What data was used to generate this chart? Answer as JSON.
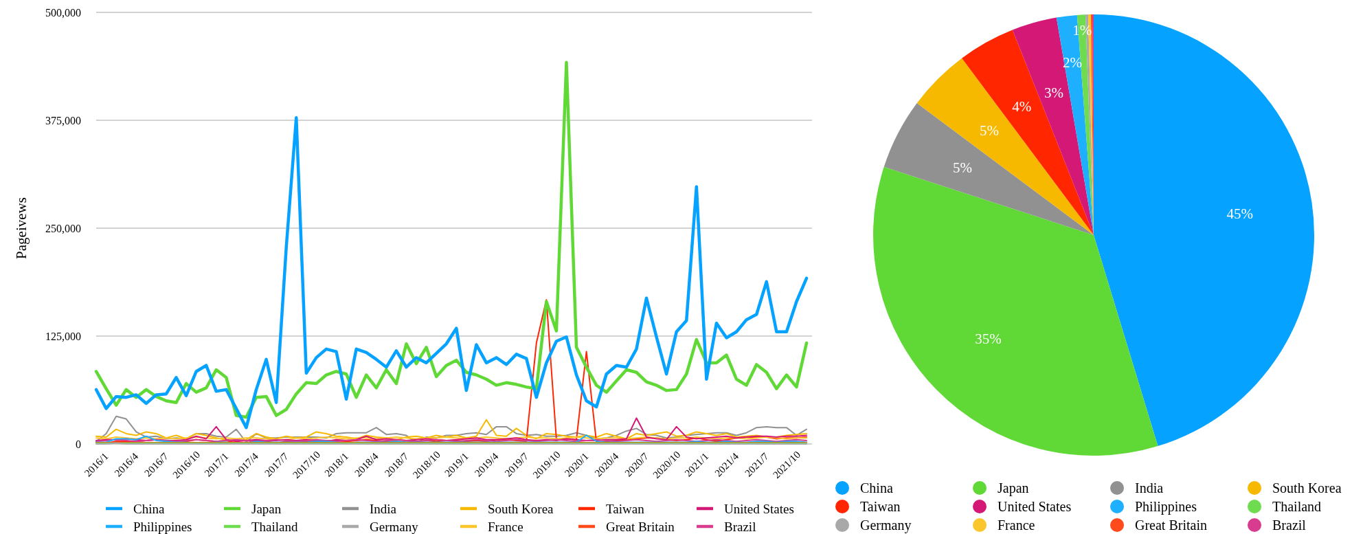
{
  "chart_data": [
    {
      "type": "line",
      "ylabel": "Pageivews",
      "ylim": [
        0,
        500000
      ],
      "yticks": [
        0,
        {
          "value": 125000,
          "label": "125,000"
        },
        {
          "value": 250000,
          "label": "250,000"
        },
        {
          "value": 375000,
          "label": "375,000"
        },
        {
          "value": 500000,
          "label": "500,000"
        }
      ],
      "grid": "y",
      "legend": "bottom",
      "categories": [
        "2016/1",
        null,
        null,
        "2016/4",
        null,
        null,
        "2016/7",
        null,
        null,
        "2016/10",
        null,
        null,
        "2017/1",
        null,
        null,
        "2017/4",
        null,
        null,
        "2017/7",
        null,
        null,
        "2017/10",
        null,
        null,
        "2018/1",
        null,
        null,
        "2018/4",
        null,
        null,
        "2018/7",
        null,
        null,
        "2018/10",
        null,
        null,
        "2019/1",
        null,
        null,
        "2019/4",
        null,
        null,
        "2019/7",
        null,
        null,
        "2019/10",
        null,
        null,
        "2020/1",
        null,
        null,
        "2020/4",
        null,
        null,
        "2020/7",
        null,
        null,
        "2020/10",
        null,
        null,
        "2021/1",
        null,
        null,
        "2021/4",
        null,
        null,
        "2021/7",
        null,
        null,
        "2021/10",
        null,
        null
      ],
      "series": [
        {
          "name": "China",
          "color": "#05a2ff",
          "values": [
            63000,
            41000,
            55000,
            54000,
            57000,
            47000,
            57000,
            58000,
            77000,
            56000,
            84000,
            91000,
            61000,
            63000,
            41000,
            19000,
            63000,
            98000,
            48000,
            228000,
            378000,
            82000,
            100000,
            110000,
            107000,
            52000,
            110000,
            106000,
            98000,
            89000,
            108000,
            89000,
            100000,
            94000,
            105000,
            116000,
            134000,
            62000,
            115000,
            94000,
            100000,
            92000,
            104000,
            99000,
            54000,
            94000,
            119000,
            124000,
            80000,
            50000,
            43000,
            81000,
            91000,
            89000,
            110000,
            169000,
            124000,
            81000,
            130000,
            143000,
            298000,
            75000,
            140000,
            123000,
            130000,
            144000,
            150000,
            188000,
            130000,
            130000,
            165000,
            192000
          ]
        },
        {
          "name": "Japan",
          "color": "#60d937",
          "values": [
            84000,
            64000,
            45000,
            63000,
            54000,
            63000,
            55000,
            50000,
            48000,
            70000,
            60000,
            65000,
            86000,
            77000,
            33000,
            31000,
            54000,
            55000,
            33000,
            40000,
            58000,
            71000,
            70000,
            80000,
            84000,
            81000,
            54000,
            80000,
            65000,
            86000,
            70000,
            116000,
            93000,
            112000,
            78000,
            91000,
            97000,
            83000,
            80000,
            75000,
            68000,
            71000,
            69000,
            66000,
            64000,
            165000,
            131000,
            442000,
            112000,
            89000,
            68000,
            60000,
            73000,
            86000,
            83000,
            72000,
            68000,
            62000,
            63000,
            81000,
            121000,
            94000,
            94000,
            103000,
            75000,
            68000,
            92000,
            83000,
            64000,
            80000,
            66000,
            117000
          ]
        },
        {
          "name": "India",
          "color": "#919191",
          "values": [
            3000,
            12000,
            32000,
            29000,
            14000,
            8000,
            9000,
            6000,
            7000,
            6000,
            12000,
            12000,
            9000,
            8000,
            17000,
            2000,
            12000,
            7000,
            7000,
            8000,
            8000,
            8000,
            8000,
            7000,
            12000,
            13000,
            13000,
            13000,
            19000,
            11000,
            12000,
            10000,
            1000,
            8000,
            7000,
            10000,
            10000,
            12000,
            13000,
            11000,
            20000,
            20000,
            12000,
            10000,
            11000,
            9000,
            9000,
            10000,
            13000,
            10000,
            6000,
            7000,
            10000,
            15000,
            18000,
            11000,
            10000,
            7000,
            8000,
            10000,
            11000,
            12000,
            13000,
            13000,
            10000,
            13000,
            19000,
            20000,
            19000,
            19000,
            10000,
            17000
          ]
        },
        {
          "name": "South Korea",
          "color": "#f7b900",
          "values": [
            9000,
            8000,
            17000,
            12000,
            10000,
            14000,
            12000,
            7000,
            10000,
            6000,
            12000,
            10000,
            7000,
            5000,
            4000,
            5000,
            12000,
            8000,
            6000,
            9000,
            7000,
            8000,
            14000,
            12000,
            9000,
            8000,
            6000,
            10000,
            8000,
            7000,
            5000,
            8000,
            9000,
            7000,
            10000,
            8000,
            10000,
            7000,
            9000,
            28000,
            10000,
            9000,
            18000,
            10000,
            6000,
            12000,
            11000,
            9000,
            8000,
            10000,
            8000,
            12000,
            9000,
            6000,
            12000,
            10000,
            12000,
            14000,
            9000,
            10000,
            14000,
            12000,
            10000,
            12000,
            8000,
            9000,
            10000,
            8000,
            8000,
            10000,
            11000,
            12000
          ]
        },
        {
          "name": "Taiwan",
          "color": "#ff2600",
          "values": [
            2000,
            1000,
            3000,
            3000,
            3000,
            4000,
            5000,
            4000,
            4000,
            3000,
            5000,
            4000,
            3000,
            4000,
            1000,
            1000,
            4000,
            3000,
            1000,
            3000,
            3000,
            3000,
            3000,
            4000,
            4000,
            3000,
            4000,
            5000,
            4000,
            3000,
            3000,
            2000,
            3000,
            4000,
            3000,
            4000,
            4000,
            3000,
            4000,
            3000,
            5000,
            5000,
            4000,
            3000,
            117000,
            167000,
            5000,
            6000,
            5000,
            107000,
            2000,
            3000,
            4000,
            5000,
            6000,
            7000,
            7000,
            5000,
            4000,
            5000,
            7000,
            5000,
            3000,
            5000,
            7000,
            8000,
            8000,
            8000,
            6000,
            7000,
            7000,
            8000
          ]
        },
        {
          "name": "United States",
          "color": "#d31876",
          "values": [
            4000,
            5000,
            5000,
            6000,
            5000,
            4000,
            5000,
            4000,
            4000,
            5000,
            9000,
            6000,
            20000,
            5000,
            3000,
            4000,
            5000,
            4000,
            4000,
            5000,
            4000,
            5000,
            4000,
            3000,
            5000,
            4000,
            5000,
            9000,
            5000,
            6000,
            5000,
            4000,
            5000,
            6000,
            5000,
            4000,
            5000,
            6000,
            7000,
            5000,
            5000,
            6000,
            7000,
            5000,
            4000,
            5000,
            4000,
            6000,
            5000,
            4000,
            4000,
            5000,
            5000,
            6000,
            30000,
            8000,
            6000,
            5000,
            20000,
            8000,
            6000,
            7000,
            8000,
            9000,
            7000,
            8000,
            9000,
            9000,
            8000,
            9000,
            9000,
            10000
          ]
        },
        {
          "name": "Philippines",
          "color": "#1eb0ff",
          "values": [
            2000,
            2000,
            6000,
            6000,
            5000,
            9000,
            4000,
            3000,
            2000,
            2000,
            1000,
            1000,
            2000,
            2000,
            1000,
            1000,
            3000,
            2000,
            2000,
            2000,
            2000,
            2000,
            3000,
            3000,
            2000,
            1000,
            2000,
            2000,
            2000,
            2000,
            3000,
            2000,
            2000,
            2000,
            2000,
            2000,
            2000,
            2000,
            2000,
            2000,
            2000,
            2000,
            2000,
            2000,
            2000,
            2000,
            2000,
            2000,
            2000,
            10000,
            3000,
            2000,
            2000,
            2000,
            2000,
            2000,
            2000,
            2000,
            2000,
            2000,
            3000,
            2000,
            2000,
            3000,
            2000,
            2000,
            3000,
            3000,
            2000,
            3000,
            3000,
            2000
          ]
        },
        {
          "name": "Thailand",
          "color": "#6fdc50",
          "values": [
            1000,
            1000,
            1000,
            1000,
            1000,
            1000,
            1000,
            1000,
            1000,
            1000,
            1000,
            1000,
            1000,
            1000,
            1000,
            1000,
            1000,
            1000,
            1000,
            1000,
            1000,
            1000,
            1000,
            1000,
            1000,
            1000,
            1000,
            1000,
            1000,
            1000,
            1000,
            1000,
            1000,
            1000,
            1000,
            1000,
            1000,
            1000,
            1000,
            1000,
            1000,
            1000,
            1000,
            1000,
            1000,
            1000,
            1000,
            1000,
            1000,
            1000,
            1000,
            1000,
            1000,
            1000,
            1000,
            1000,
            1000,
            1000,
            1000,
            1000,
            1000,
            1000,
            1000,
            1000,
            1000,
            1000,
            1000,
            1000,
            1000,
            1000,
            1000,
            1000
          ]
        },
        {
          "name": "Germany",
          "color": "#a9a9a9",
          "values": [
            0,
            0,
            1000,
            0,
            0,
            0,
            0,
            0,
            0,
            0,
            0,
            0,
            0,
            0,
            0,
            0,
            0,
            0,
            0,
            0,
            0,
            0,
            0,
            0,
            0,
            0,
            0,
            0,
            0,
            0,
            0,
            0,
            0,
            0,
            0,
            0,
            0,
            0,
            0,
            0,
            0,
            0,
            0,
            0,
            0,
            0,
            0,
            0,
            0,
            0,
            0,
            0,
            0,
            0,
            0,
            0,
            0,
            0,
            0,
            0,
            0,
            0,
            0,
            0,
            0,
            0,
            0,
            0,
            0,
            0,
            0,
            0
          ]
        },
        {
          "name": "France",
          "color": "#fbc52c",
          "values": [
            7000,
            6000,
            8000,
            7000,
            6000,
            7000,
            6000,
            7000,
            6000,
            7000,
            8000,
            7000,
            6000,
            7000,
            6000,
            7000,
            7000,
            6000,
            5000,
            5000,
            7000,
            6000,
            7000,
            8000,
            7000,
            6000,
            7000,
            7000,
            6000,
            7000,
            8000,
            7000,
            6000,
            7000,
            7000,
            8000,
            7000,
            6000,
            7000,
            8000,
            7000,
            6000,
            7000,
            8000,
            7000,
            7000,
            6000,
            7000,
            8000,
            7000,
            6000,
            7000,
            7000,
            6000,
            7000,
            8000,
            7000,
            6000,
            7000,
            7000,
            8000,
            7000,
            6000,
            7000,
            7000,
            6000,
            7000,
            8000,
            7000,
            6000,
            7000,
            7000
          ]
        },
        {
          "name": "Great Britain",
          "color": "#ff4a1c",
          "values": [
            1500,
            1500,
            1500,
            1500,
            1500,
            1500,
            1500,
            1500,
            1500,
            1500,
            1500,
            1500,
            1500,
            1500,
            1500,
            1500,
            1500,
            1500,
            1500,
            1500,
            1500,
            1500,
            1500,
            1500,
            1500,
            1500,
            1500,
            1500,
            1500,
            1500,
            1500,
            1500,
            1500,
            1500,
            1500,
            1500,
            1500,
            1500,
            1500,
            1500,
            1500,
            1500,
            1500,
            1500,
            1500,
            1500,
            1500,
            1500,
            1500,
            1500,
            1500,
            1500,
            1500,
            1500,
            1500,
            1500,
            1500,
            1500,
            1500,
            1500,
            1500,
            1500,
            1500,
            1500,
            1500,
            1500,
            1500,
            1500,
            1500,
            1500,
            1500,
            1500
          ]
        },
        {
          "name": "Brazil",
          "color": "#d83c8e",
          "values": [
            3000,
            4000,
            5000,
            4000,
            3000,
            4000,
            5000,
            4000,
            3000,
            4000,
            5000,
            4000,
            3000,
            4000,
            5000,
            4000,
            3000,
            4000,
            5000,
            4000,
            3000,
            4000,
            5000,
            4000,
            3000,
            4000,
            5000,
            4000,
            3000,
            4000,
            5000,
            4000,
            3000,
            4000,
            5000,
            4000,
            3000,
            4000,
            5000,
            4000,
            3000,
            4000,
            5000,
            4000,
            3000,
            4000,
            5000,
            4000,
            3000,
            4000,
            5000,
            4000,
            3000,
            4000,
            5000,
            4000,
            3000,
            4000,
            5000,
            4000,
            3000,
            4000,
            5000,
            4000,
            3000,
            4000,
            5000,
            4000,
            3000,
            4000,
            5000,
            4000
          ]
        }
      ]
    },
    {
      "type": "pie",
      "legend": "bottom",
      "categories": [
        "China",
        "Japan",
        "India",
        "South Korea",
        "Taiwan",
        "United States",
        "Philippines",
        "Thailand",
        "Germany",
        "France",
        "Great Britain",
        "Brazil"
      ],
      "values": [
        45.3,
        34.7,
        5.2,
        4.6,
        4.2,
        3.3,
        1.5,
        0.6,
        0.2,
        0.2,
        0.1,
        0.1
      ],
      "colors": [
        "#05a2ff",
        "#60d937",
        "#919191",
        "#f7b900",
        "#ff2600",
        "#d31876",
        "#1eb0ff",
        "#6fdc50",
        "#a9a9a9",
        "#fbc52c",
        "#ff4a1c",
        "#d83c8e"
      ],
      "value_labels": [
        "45%",
        "35%",
        "5%",
        "5%",
        "4%",
        "3%",
        "2%",
        "1%",
        null,
        null,
        null,
        null
      ]
    }
  ]
}
